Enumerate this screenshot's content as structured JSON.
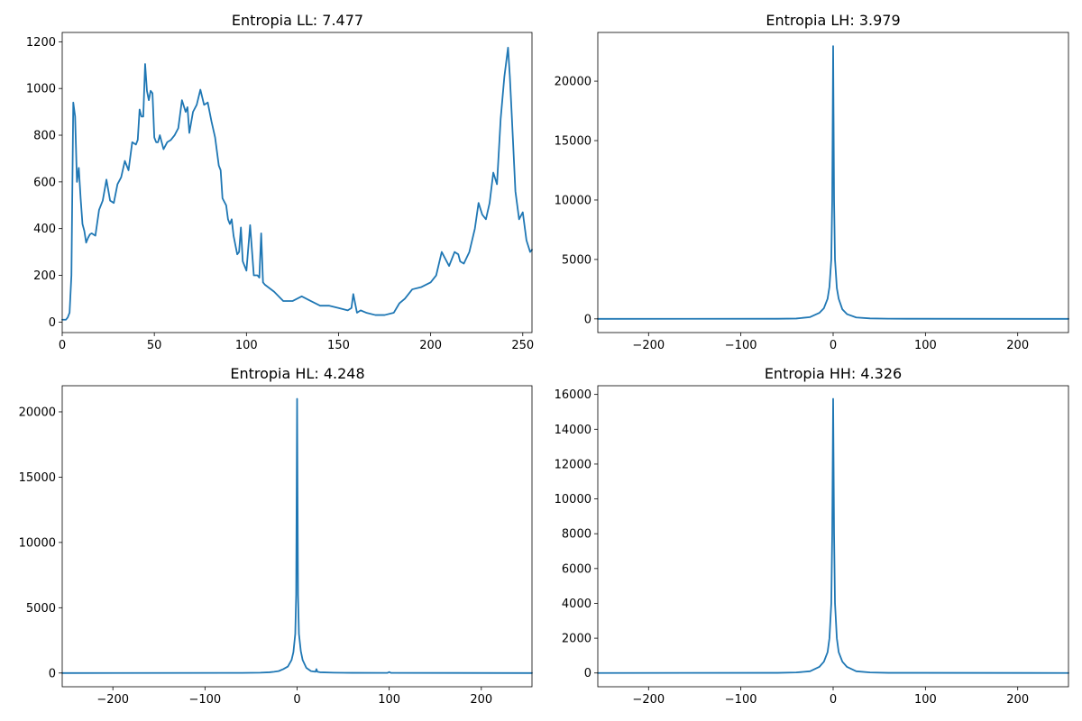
{
  "figure": {
    "background": "#ffffff",
    "line_color": "#1f77b4"
  },
  "chart_data": [
    {
      "id": "ll",
      "type": "line",
      "title": "Entropia LL: 7.477",
      "xlabel": "",
      "ylabel": "",
      "xlim": [
        0,
        255
      ],
      "ylim": [
        -45,
        1240
      ],
      "xticks": [
        0,
        50,
        100,
        150,
        200,
        250
      ],
      "yticks": [
        0,
        200,
        400,
        600,
        800,
        1000,
        1200
      ],
      "grid": false,
      "series": [
        {
          "color": "#1f77b4",
          "x": [
            0,
            2,
            3,
            4,
            5,
            6,
            7,
            8,
            9,
            10,
            11,
            12,
            13,
            14,
            15,
            16,
            18,
            20,
            22,
            24,
            26,
            28,
            30,
            32,
            34,
            36,
            38,
            40,
            41,
            42,
            43,
            44,
            45,
            46,
            47,
            48,
            49,
            50,
            51,
            52,
            53,
            55,
            57,
            59,
            61,
            63,
            65,
            67,
            68,
            69,
            71,
            73,
            75,
            77,
            79,
            81,
            83,
            85,
            86,
            87,
            89,
            90,
            91,
            92,
            93,
            94,
            95,
            96,
            97,
            98,
            100,
            102,
            104,
            106,
            107,
            108,
            109,
            110,
            115,
            120,
            125,
            130,
            135,
            140,
            145,
            150,
            155,
            157,
            158,
            160,
            162,
            165,
            170,
            175,
            180,
            183,
            186,
            190,
            195,
            200,
            203,
            206,
            210,
            213,
            215,
            216,
            218,
            221,
            224,
            226,
            228,
            230,
            232,
            234,
            236,
            238,
            240,
            242,
            243,
            244,
            246,
            248,
            250,
            252,
            254,
            255
          ],
          "y": [
            10,
            10,
            20,
            40,
            200,
            940,
            880,
            600,
            660,
            530,
            420,
            390,
            340,
            360,
            375,
            380,
            370,
            480,
            520,
            610,
            520,
            510,
            590,
            620,
            690,
            650,
            770,
            760,
            780,
            910,
            880,
            880,
            1105,
            990,
            950,
            990,
            980,
            790,
            770,
            770,
            800,
            740,
            770,
            780,
            800,
            830,
            950,
            900,
            920,
            810,
            900,
            930,
            995,
            930,
            940,
            860,
            790,
            670,
            650,
            530,
            500,
            440,
            420,
            440,
            370,
            330,
            290,
            300,
            405,
            260,
            220,
            415,
            200,
            200,
            190,
            380,
            170,
            160,
            130,
            90,
            90,
            110,
            90,
            70,
            70,
            60,
            50,
            60,
            120,
            40,
            50,
            40,
            30,
            30,
            40,
            80,
            100,
            140,
            150,
            170,
            200,
            300,
            240,
            300,
            290,
            260,
            250,
            300,
            400,
            510,
            460,
            440,
            510,
            640,
            590,
            870,
            1050,
            1175,
            1050,
            890,
            560,
            440,
            470,
            350,
            300,
            310
          ]
        }
      ]
    },
    {
      "id": "lh",
      "type": "line",
      "title": "Entropia LH: 3.979",
      "xlabel": "",
      "ylabel": "",
      "xlim": [
        -255,
        255
      ],
      "ylim": [
        -1150,
        24100
      ],
      "xticks": [
        -200,
        -100,
        0,
        100,
        200
      ],
      "yticks": [
        0,
        5000,
        10000,
        15000,
        20000
      ],
      "grid": false,
      "series": [
        {
          "color": "#1f77b4",
          "x": [
            -255,
            -60,
            -40,
            -25,
            -15,
            -10,
            -6,
            -4,
            -2,
            -1,
            0,
            1,
            2,
            4,
            6,
            10,
            15,
            25,
            40,
            60,
            80,
            255
          ],
          "y": [
            0,
            10,
            30,
            150,
            500,
            900,
            1700,
            2700,
            5000,
            10000,
            22950,
            10000,
            5000,
            2600,
            1700,
            800,
            400,
            120,
            40,
            15,
            10,
            0
          ]
        }
      ]
    },
    {
      "id": "hl",
      "type": "line",
      "title": "Entropia HL: 4.248",
      "xlabel": "",
      "ylabel": "",
      "xlim": [
        -255,
        255
      ],
      "ylim": [
        -1050,
        22000
      ],
      "xticks": [
        -200,
        -100,
        0,
        100,
        200
      ],
      "yticks": [
        0,
        5000,
        10000,
        15000,
        20000
      ],
      "grid": false,
      "series": [
        {
          "color": "#1f77b4",
          "x": [
            -255,
            -60,
            -40,
            -30,
            -25,
            -20,
            -15,
            -10,
            -6,
            -4,
            -2,
            -1,
            0,
            1,
            2,
            4,
            6,
            10,
            15,
            20,
            21,
            22,
            25,
            40,
            60,
            98,
            100,
            102,
            255
          ],
          "y": [
            0,
            10,
            30,
            60,
            100,
            150,
            300,
            500,
            1000,
            1600,
            3000,
            6000,
            21000,
            6000,
            3000,
            1700,
            1000,
            400,
            150,
            100,
            300,
            100,
            60,
            30,
            15,
            10,
            80,
            10,
            0
          ]
        }
      ]
    },
    {
      "id": "hh",
      "type": "line",
      "title": "Entropia HH: 4.326",
      "xlabel": "",
      "ylabel": "",
      "xlim": [
        -255,
        255
      ],
      "ylim": [
        -790,
        16500
      ],
      "xticks": [
        -200,
        -100,
        0,
        100,
        200
      ],
      "yticks": [
        0,
        2000,
        4000,
        6000,
        8000,
        10000,
        12000,
        14000,
        16000
      ],
      "grid": false,
      "series": [
        {
          "color": "#1f77b4",
          "x": [
            -255,
            -60,
            -40,
            -25,
            -15,
            -10,
            -6,
            -4,
            -2,
            -1,
            0,
            1,
            2,
            4,
            6,
            10,
            15,
            25,
            40,
            60,
            255
          ],
          "y": [
            0,
            10,
            30,
            100,
            350,
            650,
            1200,
            2000,
            4000,
            8000,
            15750,
            8000,
            4000,
            2000,
            1200,
            650,
            350,
            100,
            30,
            10,
            0
          ]
        }
      ]
    }
  ]
}
